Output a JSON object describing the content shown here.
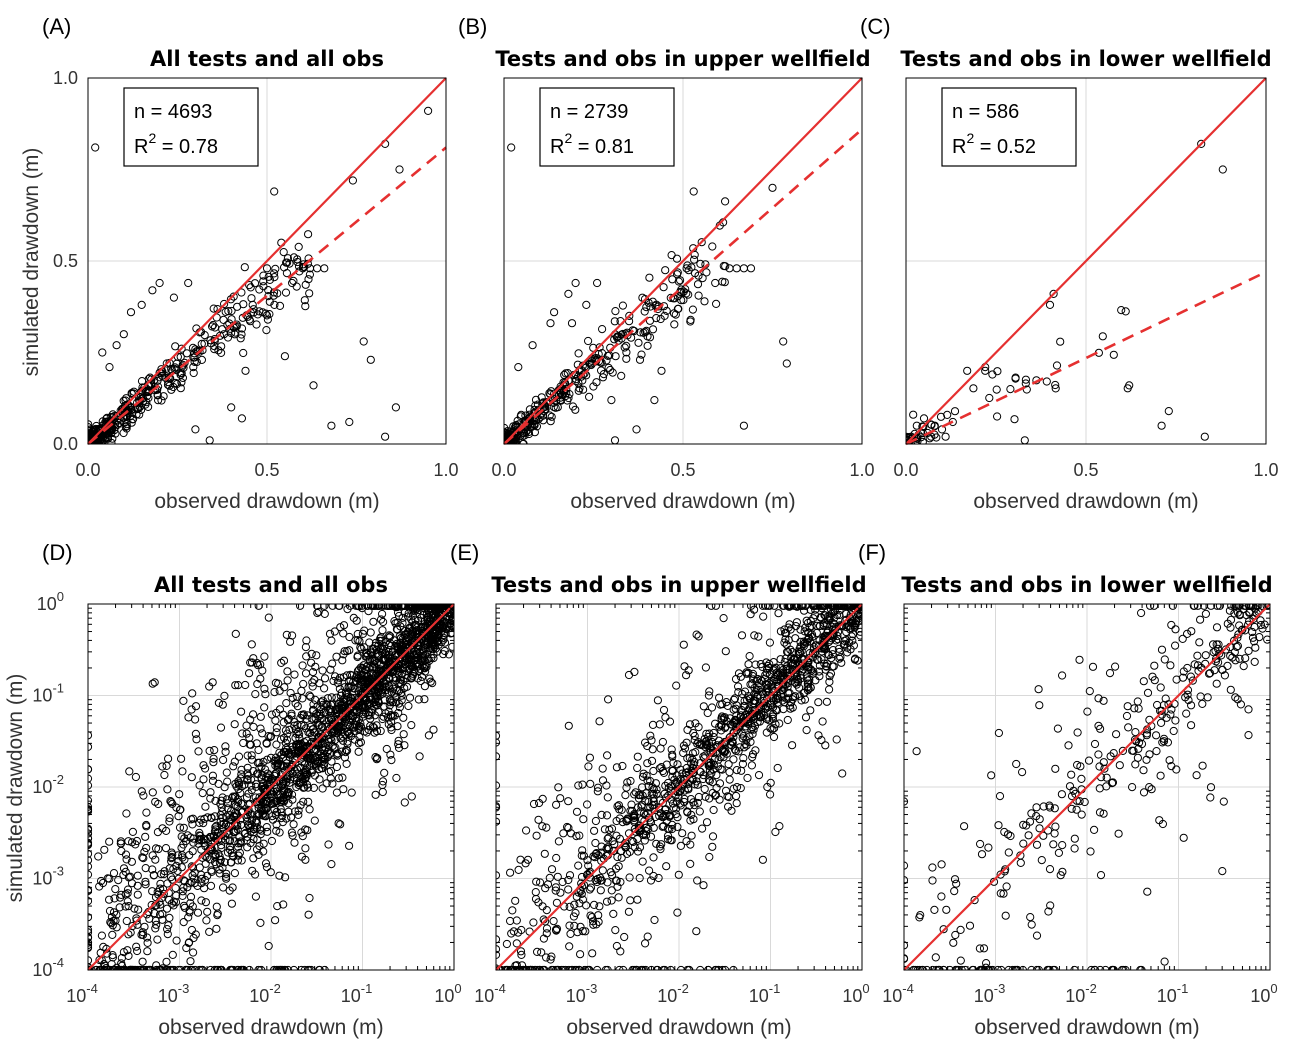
{
  "figure": {
    "ylabel": "simulated drawdown (m)"
  },
  "colors": {
    "one_to_one": "#e53030",
    "points": "#000000",
    "grid": "#d9d9d9"
  },
  "chart_data": [
    {
      "id": "A",
      "letter": "(A)",
      "type": "scatter",
      "scale": "linear",
      "title": "All tests and all obs",
      "xlabel": "observed drawdown (m)",
      "xlim": [
        0,
        1
      ],
      "ylim": [
        0,
        1
      ],
      "xticks": [
        "0.0",
        "0.5",
        "1.0"
      ],
      "yticks": [
        "0.0",
        "0.5",
        "1.0"
      ],
      "stats": {
        "n": "4693",
        "r2": "0.78"
      },
      "fit_slope": 0.81,
      "seed": 11,
      "cluster_count": 520,
      "points": [
        [
          0.02,
          0.81
        ],
        [
          0.52,
          0.69
        ],
        [
          0.54,
          0.55
        ],
        [
          0.74,
          0.72
        ],
        [
          0.83,
          0.82
        ],
        [
          0.87,
          0.75
        ],
        [
          0.95,
          0.91
        ],
        [
          0.63,
          0.16
        ],
        [
          0.68,
          0.05
        ],
        [
          0.73,
          0.06
        ],
        [
          0.77,
          0.28
        ],
        [
          0.79,
          0.23
        ],
        [
          0.86,
          0.1
        ],
        [
          0.83,
          0.02
        ],
        [
          0.55,
          0.24
        ],
        [
          0.6,
          0.48
        ],
        [
          0.62,
          0.48
        ],
        [
          0.64,
          0.48
        ],
        [
          0.66,
          0.48
        ],
        [
          0.43,
          0.07
        ],
        [
          0.34,
          0.01
        ],
        [
          0.3,
          0.04
        ],
        [
          0.44,
          0.2
        ],
        [
          0.4,
          0.1
        ],
        [
          0.18,
          0.42
        ],
        [
          0.2,
          0.44
        ],
        [
          0.28,
          0.44
        ],
        [
          0.24,
          0.4
        ],
        [
          0.08,
          0.27
        ],
        [
          0.04,
          0.25
        ],
        [
          0.06,
          0.21
        ],
        [
          0.1,
          0.3
        ],
        [
          0.12,
          0.36
        ],
        [
          0.15,
          0.38
        ],
        [
          0.22,
          0.22
        ],
        [
          0.38,
          0.3
        ],
        [
          0.46,
          0.38
        ],
        [
          0.49,
          0.46
        ],
        [
          0.5,
          0.48
        ],
        [
          0.57,
          0.44
        ]
      ]
    },
    {
      "id": "B",
      "letter": "(B)",
      "type": "scatter",
      "scale": "linear",
      "title": "Tests and obs in upper wellfield",
      "xlabel": "observed drawdown (m)",
      "xlim": [
        0,
        1
      ],
      "ylim": [
        0,
        1
      ],
      "xticks": [
        "0.0",
        "0.5",
        "1.0"
      ],
      "yticks": [],
      "stats": {
        "n": "2739",
        "r2": "0.81"
      },
      "fit_slope": 0.86,
      "seed": 23,
      "cluster_count": 420,
      "points": [
        [
          0.02,
          0.81
        ],
        [
          0.53,
          0.69
        ],
        [
          0.75,
          0.7
        ],
        [
          0.78,
          0.28
        ],
        [
          0.79,
          0.22
        ],
        [
          0.67,
          0.05
        ],
        [
          0.37,
          0.04
        ],
        [
          0.31,
          0.01
        ],
        [
          0.42,
          0.12
        ],
        [
          0.44,
          0.2
        ],
        [
          0.18,
          0.41
        ],
        [
          0.2,
          0.44
        ],
        [
          0.26,
          0.44
        ],
        [
          0.19,
          0.33
        ],
        [
          0.13,
          0.33
        ],
        [
          0.08,
          0.27
        ],
        [
          0.04,
          0.21
        ],
        [
          0.14,
          0.36
        ],
        [
          0.23,
          0.38
        ],
        [
          0.35,
          0.35
        ],
        [
          0.47,
          0.45
        ],
        [
          0.51,
          0.48
        ],
        [
          0.63,
          0.48
        ],
        [
          0.65,
          0.48
        ],
        [
          0.67,
          0.48
        ],
        [
          0.69,
          0.48
        ],
        [
          0.59,
          0.44
        ],
        [
          0.56,
          0.39
        ],
        [
          0.38,
          0.23
        ],
        [
          0.3,
          0.12
        ]
      ]
    },
    {
      "id": "C",
      "letter": "(C)",
      "type": "scatter",
      "scale": "linear",
      "title": "Tests and obs in lower wellfield",
      "xlabel": "observed drawdown (m)",
      "xlim": [
        0,
        1
      ],
      "ylim": [
        0,
        1
      ],
      "xticks": [
        "0.0",
        "0.5",
        "1.0"
      ],
      "yticks": [],
      "stats": {
        "n": "586",
        "r2": "0.52"
      },
      "fit_slope": 0.47,
      "seed": 37,
      "cluster_count": 60,
      "points": [
        [
          0.82,
          0.82
        ],
        [
          0.88,
          0.75
        ],
        [
          0.4,
          0.38
        ],
        [
          0.41,
          0.41
        ],
        [
          0.22,
          0.2
        ],
        [
          0.24,
          0.19
        ],
        [
          0.17,
          0.2
        ],
        [
          0.22,
          0.21
        ],
        [
          0.29,
          0.15
        ],
        [
          0.13,
          0.06
        ],
        [
          0.1,
          0.04
        ],
        [
          0.07,
          0.02
        ],
        [
          0.11,
          0.02
        ],
        [
          0.06,
          0.03
        ],
        [
          0.03,
          0.05
        ],
        [
          0.02,
          0.08
        ],
        [
          0.62,
          0.16
        ],
        [
          0.71,
          0.05
        ],
        [
          0.73,
          0.09
        ],
        [
          0.83,
          0.02
        ],
        [
          0.33,
          0.01
        ],
        [
          0.05,
          0.07
        ],
        [
          0.08,
          0.05
        ]
      ]
    },
    {
      "id": "D",
      "letter": "(D)",
      "type": "scatter",
      "scale": "log",
      "title": "All tests and all obs",
      "xlabel": "observed drawdown (m)",
      "xlim": [
        0.0001,
        1
      ],
      "ylim": [
        0.0001,
        1
      ],
      "xticks": [
        "10",
        "10",
        "10",
        "10",
        "10"
      ],
      "xtick_exp": [
        "-4",
        "-3",
        "-2",
        "-1",
        "0"
      ],
      "yticks": [
        "10",
        "10",
        "10",
        "10",
        "10"
      ],
      "ytick_exp": [
        "-4",
        "-3",
        "-2",
        "-1",
        "0"
      ],
      "seed": 51,
      "cloud_count": 2200,
      "spread": 0.75,
      "floor_count": 90,
      "wall_count": 40,
      "points": []
    },
    {
      "id": "E",
      "letter": "(E)",
      "type": "scatter",
      "scale": "log",
      "title": "Tests and obs in upper wellfield",
      "xlabel": "observed drawdown (m)",
      "xlim": [
        0.0001,
        1
      ],
      "ylim": [
        0.0001,
        1
      ],
      "xticks": [
        "10",
        "10",
        "10",
        "10",
        "10"
      ],
      "xtick_exp": [
        "-4",
        "-3",
        "-2",
        "-1",
        "0"
      ],
      "yticks": [],
      "ytick_exp": [],
      "seed": 67,
      "cloud_count": 1300,
      "spread": 0.62,
      "floor_count": 70,
      "wall_count": 12,
      "points": []
    },
    {
      "id": "F",
      "letter": "(F)",
      "type": "scatter",
      "scale": "log",
      "title": "Tests and obs in lower wellfield",
      "xlabel": "observed drawdown (m)",
      "xlim": [
        0.0001,
        1
      ],
      "ylim": [
        0.0001,
        1
      ],
      "xticks": [
        "10",
        "10",
        "10",
        "10",
        "10"
      ],
      "xtick_exp": [
        "-4",
        "-3",
        "-2",
        "-1",
        "0"
      ],
      "yticks": [],
      "ytick_exp": [],
      "seed": 83,
      "cloud_count": 360,
      "spread": 0.9,
      "floor_count": 55,
      "wall_count": 6,
      "points": []
    }
  ]
}
